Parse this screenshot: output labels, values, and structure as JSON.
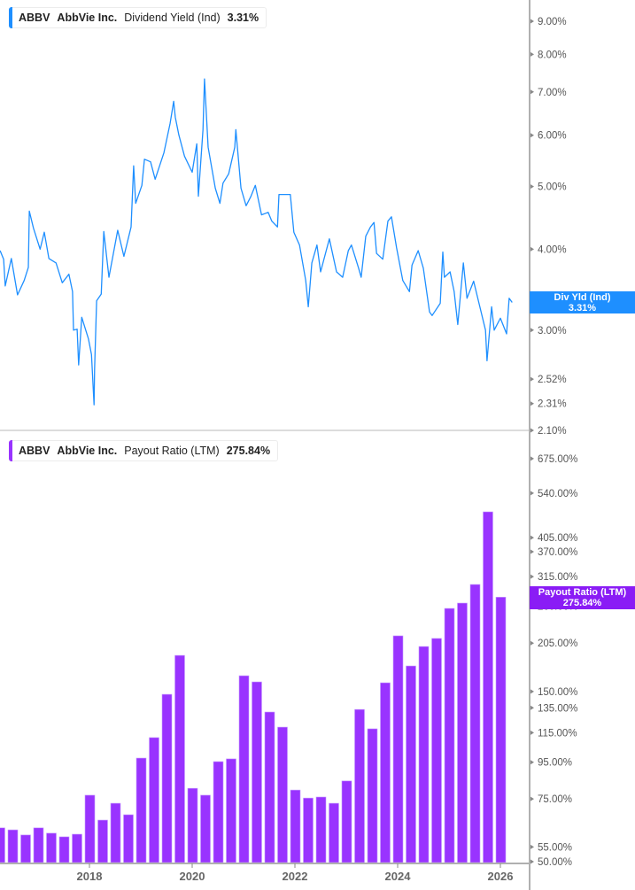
{
  "colors": {
    "yield": "#1e8fff",
    "payout": "#9933ff",
    "axis": "#b0b0b0"
  },
  "top_legend": {
    "ticker": "ABBV",
    "company": "AbbVie Inc.",
    "metric": "Dividend Yield (Ind)",
    "value": "3.31%"
  },
  "top_tag": {
    "label": "Div Yld (Ind)",
    "value": "3.31%"
  },
  "bottom_legend": {
    "ticker": "ABBV",
    "company": "AbbVie Inc.",
    "metric": "Payout Ratio (LTM)",
    "value": "275.84%"
  },
  "bottom_tag": {
    "label": "Payout Ratio (LTM)",
    "value": "275.84%"
  },
  "chart_data": [
    {
      "type": "line",
      "series_name": "Dividend Yield (Ind)",
      "y_scale": "log",
      "ylim": [
        2.1,
        9.6
      ],
      "xlim": [
        2016.26,
        2026.52
      ],
      "y_ticks": [
        9.0,
        8.0,
        7.0,
        6.0,
        5.0,
        4.0,
        3.0,
        2.52,
        2.31,
        2.1
      ],
      "y_tick_labels": [
        "9.00%",
        "8.00%",
        "7.00%",
        "6.00%",
        "5.00%",
        "4.00%",
        "3.00%",
        "2.52%",
        "2.31%",
        "2.10%"
      ],
      "grid": false,
      "x": [
        2016.26,
        2016.33,
        2016.36,
        2016.48,
        2016.6,
        2016.73,
        2016.81,
        2016.83,
        2016.91,
        2017.04,
        2017.12,
        2017.21,
        2017.35,
        2017.47,
        2017.6,
        2017.67,
        2017.69,
        2017.76,
        2017.79,
        2017.85,
        2017.98,
        2018.04,
        2018.09,
        2018.1,
        2018.14,
        2018.23,
        2018.28,
        2018.38,
        2018.55,
        2018.67,
        2018.81,
        2018.86,
        2018.9,
        2019.02,
        2019.07,
        2019.19,
        2019.28,
        2019.45,
        2019.57,
        2019.64,
        2019.67,
        2019.74,
        2019.85,
        2020.0,
        2020.09,
        2020.12,
        2020.21,
        2020.24,
        2020.31,
        2020.45,
        2020.54,
        2020.6,
        2020.71,
        2020.83,
        2020.85,
        2020.95,
        2021.05,
        2021.14,
        2021.23,
        2021.35,
        2021.48,
        2021.55,
        2021.66,
        2021.69,
        2021.86,
        2021.91,
        2021.98,
        2022.09,
        2022.21,
        2022.26,
        2022.33,
        2022.43,
        2022.5,
        2022.67,
        2022.81,
        2022.93,
        2023.04,
        2023.1,
        2023.24,
        2023.29,
        2023.38,
        2023.47,
        2023.54,
        2023.59,
        2023.71,
        2023.81,
        2023.88,
        2023.98,
        2024.1,
        2024.23,
        2024.28,
        2024.4,
        2024.5,
        2024.62,
        2024.67,
        2024.83,
        2024.88,
        2024.91,
        2025.02,
        2025.1,
        2025.17,
        2025.28,
        2025.35,
        2025.48,
        2025.6,
        2025.71,
        2025.74,
        2025.83,
        2025.88,
        2026.0,
        2026.12,
        2026.17,
        2026.23
      ],
      "y": [
        3.98,
        3.86,
        3.51,
        3.87,
        3.4,
        3.58,
        3.75,
        4.58,
        4.31,
        4.0,
        4.25,
        3.87,
        3.81,
        3.55,
        3.66,
        3.44,
        3.0,
        3.01,
        2.65,
        3.14,
        2.91,
        2.75,
        2.3,
        2.61,
        3.33,
        3.41,
        4.26,
        3.62,
        4.28,
        3.9,
        4.33,
        5.38,
        4.71,
        5.02,
        5.51,
        5.46,
        5.13,
        5.64,
        6.26,
        6.77,
        6.4,
        6.01,
        5.57,
        5.26,
        5.82,
        4.83,
        6.12,
        7.33,
        5.75,
        4.97,
        4.71,
        5.06,
        5.23,
        5.75,
        6.12,
        4.97,
        4.67,
        4.82,
        5.02,
        4.52,
        4.56,
        4.42,
        4.33,
        4.86,
        4.86,
        4.86,
        4.25,
        4.06,
        3.58,
        3.26,
        3.81,
        4.06,
        3.69,
        4.15,
        3.69,
        3.62,
        3.98,
        4.06,
        3.74,
        3.62,
        4.19,
        4.33,
        4.4,
        3.94,
        3.86,
        4.42,
        4.49,
        4.02,
        3.58,
        3.44,
        3.78,
        3.98,
        3.74,
        3.2,
        3.16,
        3.3,
        3.96,
        3.62,
        3.69,
        3.44,
        3.06,
        3.81,
        3.36,
        3.57,
        3.26,
        3.0,
        2.69,
        3.26,
        3.0,
        3.13,
        2.96,
        3.36,
        3.31
      ]
    },
    {
      "type": "bar",
      "series_name": "Payout Ratio (LTM)",
      "y_scale": "log",
      "ylim": [
        50,
        760
      ],
      "y_ticks": [
        675,
        540,
        405,
        370,
        315,
        260,
        205,
        150,
        135,
        115,
        95,
        75,
        55,
        50
      ],
      "y_tick_labels": [
        "675.00%",
        "540.00%",
        "405.00%",
        "370.00%",
        "315.00%",
        "260.00%",
        "205.00%",
        "150.00%",
        "135.00%",
        "115.00%",
        "95.00%",
        "75.00%",
        "55.00%",
        "50.00%"
      ],
      "x_ticks": [
        2018,
        2020,
        2022,
        2024,
        2026
      ],
      "x_tick_labels": [
        "2018",
        "2020",
        "2022",
        "2024",
        "2026"
      ],
      "grid": false,
      "categories": [
        "Q1 2016",
        "Q2 2016",
        "Q3 2016",
        "Q4 2016",
        "Q1 2017",
        "Q2 2017",
        "Q3 2017",
        "Q4 2017",
        "Q1 2018",
        "Q2 2018",
        "Q3 2018",
        "Q4 2018",
        "Q1 2019",
        "Q2 2019",
        "Q3 2019",
        "Q4 2019",
        "Q1 2020",
        "Q2 2020",
        "Q3 2020",
        "Q4 2020",
        "Q1 2021",
        "Q2 2021",
        "Q3 2021",
        "Q4 2021",
        "Q1 2022",
        "Q2 2022",
        "Q3 2022",
        "Q4 2022",
        "Q1 2023",
        "Q2 2023",
        "Q3 2023",
        "Q4 2023",
        "Q1 2024",
        "Q2 2024",
        "Q3 2024",
        "Q4 2024",
        "Q1 2025",
        "Q2 2025",
        "Q3 2025",
        "Q4 2025"
      ],
      "values": [
        62.2,
        61.4,
        59.4,
        62.2,
        60.1,
        58.7,
        59.7,
        76.8,
        65.4,
        72.9,
        67.7,
        97.6,
        111.4,
        147.3,
        189.4,
        80.3,
        76.8,
        95.4,
        97.1,
        166.1,
        159.6,
        131.4,
        119.2,
        79.4,
        75.4,
        75.9,
        72.9,
        84.2,
        133.6,
        117.9,
        158.7,
        214.9,
        176.9,
        200.6,
        211.3,
        256.5,
        265.5,
        299.4,
        478.5,
        275.84
      ]
    }
  ]
}
